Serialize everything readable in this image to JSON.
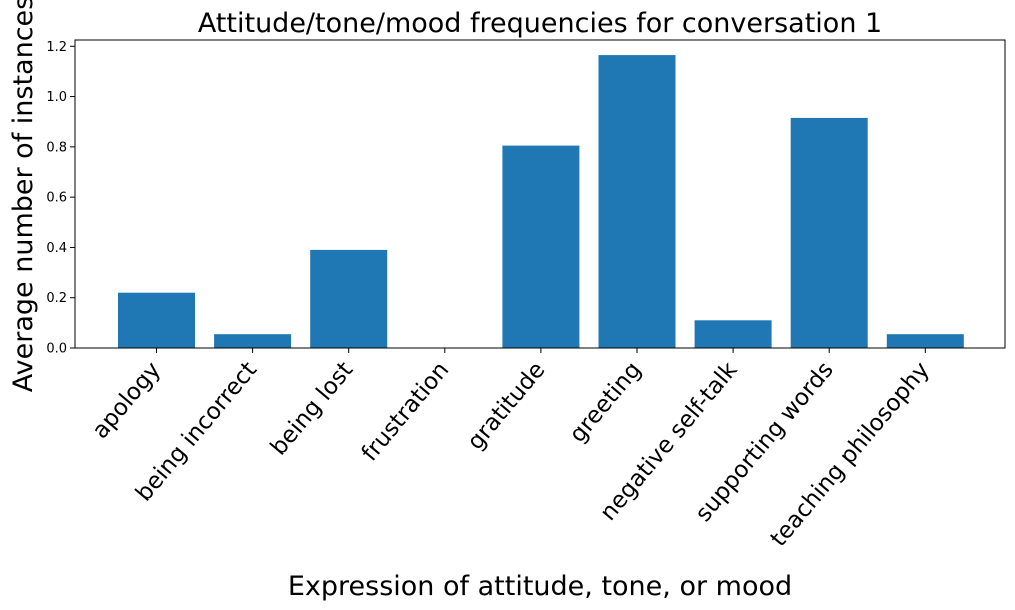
{
  "chart_data": {
    "type": "bar",
    "title": "Attitude/tone/mood frequencies for conversation 1",
    "xlabel": "Expression of attitude, tone, or mood",
    "ylabel": "Average number of instances",
    "categories": [
      "apology",
      "being incorrect",
      "being lost",
      "frustration",
      "gratitude",
      "greeting",
      "negative self-talk",
      "supporting words",
      "teaching philosophy"
    ],
    "values": [
      0.22,
      0.055,
      0.39,
      0.0,
      0.805,
      1.165,
      0.11,
      0.915,
      0.055
    ],
    "ylim": [
      0,
      1.225
    ],
    "yticks": [
      "0.0",
      "0.2",
      "0.4",
      "0.6",
      "0.8",
      "1.0",
      "1.2"
    ],
    "grid": false,
    "bar_color": "#1f77b4"
  }
}
